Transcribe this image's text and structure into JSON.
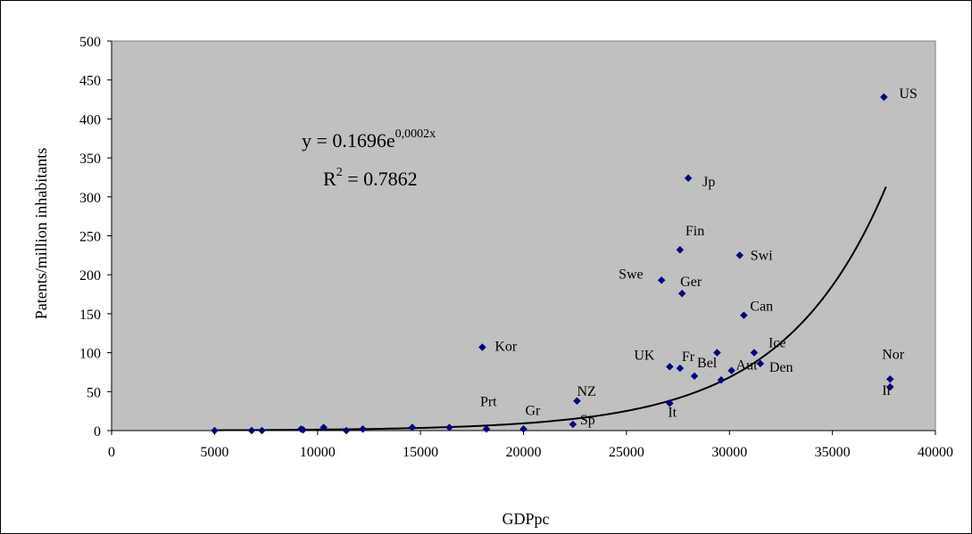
{
  "chart_data": {
    "type": "scatter",
    "title": "",
    "xlabel": "GDPpc",
    "ylabel": "Patents/million inhabitants",
    "xlim": [
      0,
      40000
    ],
    "ylim": [
      0,
      500
    ],
    "xticks": [
      0,
      5000,
      10000,
      15000,
      20000,
      25000,
      30000,
      35000,
      40000
    ],
    "yticks": [
      0,
      50,
      100,
      150,
      200,
      250,
      300,
      350,
      400,
      450,
      500
    ],
    "grid": false,
    "legend": "none",
    "colors": {
      "plot_background": "#c0c0c0",
      "marker": "#000080",
      "trendline": "#000000"
    },
    "trendline": {
      "type": "exponential",
      "a": 0.1696,
      "b": 0.0002,
      "equation_text": "y = 0.1696e",
      "equation_exponent": "0,0002x",
      "r2_text": "R",
      "r2_exponent": "2",
      "r2_value_text": " = 0.7862"
    },
    "points": [
      {
        "x": 5000,
        "y": 0,
        "label": ""
      },
      {
        "x": 6800,
        "y": 0,
        "label": ""
      },
      {
        "x": 7300,
        "y": 0,
        "label": ""
      },
      {
        "x": 9200,
        "y": 2,
        "label": ""
      },
      {
        "x": 9300,
        "y": 1,
        "label": ""
      },
      {
        "x": 10300,
        "y": 4,
        "label": ""
      },
      {
        "x": 11400,
        "y": 0,
        "label": ""
      },
      {
        "x": 12200,
        "y": 2,
        "label": ""
      },
      {
        "x": 14600,
        "y": 4,
        "label": ""
      },
      {
        "x": 16400,
        "y": 4,
        "label": ""
      },
      {
        "x": 18000,
        "y": 107,
        "label": "Kor"
      },
      {
        "x": 18200,
        "y": 2,
        "label": "Prt"
      },
      {
        "x": 20000,
        "y": 2,
        "label": "Gr"
      },
      {
        "x": 22400,
        "y": 8,
        "label": "Sp"
      },
      {
        "x": 22600,
        "y": 38,
        "label": "NZ"
      },
      {
        "x": 26700,
        "y": 193,
        "label": "Swe"
      },
      {
        "x": 27100,
        "y": 82,
        "label": "UK"
      },
      {
        "x": 27100,
        "y": 35,
        "label": "It"
      },
      {
        "x": 27600,
        "y": 232,
        "label": "Fin"
      },
      {
        "x": 27600,
        "y": 80,
        "label": "Fr"
      },
      {
        "x": 27700,
        "y": 176,
        "label": "Ger"
      },
      {
        "x": 28000,
        "y": 324,
        "label": "Jp"
      },
      {
        "x": 28300,
        "y": 70,
        "label": "Bel"
      },
      {
        "x": 29400,
        "y": 100,
        "label": ""
      },
      {
        "x": 29600,
        "y": 65,
        "label": ""
      },
      {
        "x": 30100,
        "y": 77,
        "label": "Aut"
      },
      {
        "x": 30500,
        "y": 225,
        "label": "Swi"
      },
      {
        "x": 30700,
        "y": 148,
        "label": "Can"
      },
      {
        "x": 31200,
        "y": 100,
        "label": "Ice"
      },
      {
        "x": 31500,
        "y": 86,
        "label": "Den"
      },
      {
        "x": 37500,
        "y": 428,
        "label": "US"
      },
      {
        "x": 37800,
        "y": 66,
        "label": "Nor"
      },
      {
        "x": 37800,
        "y": 56,
        "label": "Ir"
      }
    ]
  }
}
